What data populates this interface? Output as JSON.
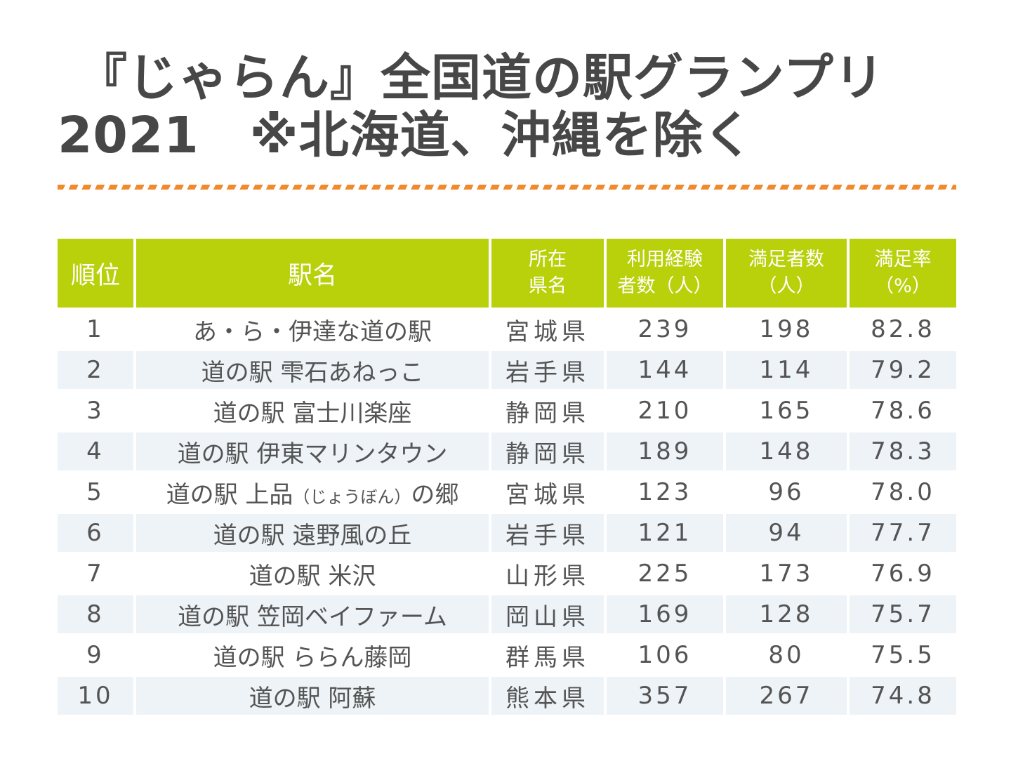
{
  "title": {
    "line1": "『じゃらん』全国道の駅グランプリ",
    "line2": "2021　※北海道、沖縄を除く"
  },
  "accent_colors": {
    "header_bg": "#b9d10a",
    "divider": "#f08a2c",
    "stripe": "#eef3f7"
  },
  "table": {
    "headers": {
      "rank": "順位",
      "name": "駅名",
      "pref_1": "所在",
      "pref_2": "県名",
      "users_1": "利用経験",
      "users_2": "者数（人）",
      "satisfied_1": "満足者数",
      "satisfied_2": "（人）",
      "rate_1": "満足率",
      "rate_2": "（%）"
    },
    "rows": [
      {
        "rank": "1",
        "name": "あ・ら・伊達な道の駅",
        "name_note": "",
        "name_tail": "",
        "pref": "宮城県",
        "users": "239",
        "satisfied": "198",
        "rate": "82.8"
      },
      {
        "rank": "2",
        "name": "道の駅 雫石あねっこ",
        "name_note": "",
        "name_tail": "",
        "pref": "岩手県",
        "users": "144",
        "satisfied": "114",
        "rate": "79.2"
      },
      {
        "rank": "3",
        "name": "道の駅 富士川楽座",
        "name_note": "",
        "name_tail": "",
        "pref": "静岡県",
        "users": "210",
        "satisfied": "165",
        "rate": "78.6"
      },
      {
        "rank": "4",
        "name": "道の駅 伊東マリンタウン",
        "name_note": "",
        "name_tail": "",
        "pref": "静岡県",
        "users": "189",
        "satisfied": "148",
        "rate": "78.3"
      },
      {
        "rank": "5",
        "name": "道の駅 上品",
        "name_note": "（じょうぼん）",
        "name_tail": "の郷",
        "pref": "宮城県",
        "users": "123",
        "satisfied": "96",
        "rate": "78.0"
      },
      {
        "rank": "6",
        "name": "道の駅 遠野風の丘",
        "name_note": "",
        "name_tail": "",
        "pref": "岩手県",
        "users": "121",
        "satisfied": "94",
        "rate": "77.7"
      },
      {
        "rank": "7",
        "name": "道の駅 米沢",
        "name_note": "",
        "name_tail": "",
        "pref": "山形県",
        "users": "225",
        "satisfied": "173",
        "rate": "76.9"
      },
      {
        "rank": "8",
        "name": "道の駅 笠岡ベイファーム",
        "name_note": "",
        "name_tail": "",
        "pref": "岡山県",
        "users": "169",
        "satisfied": "128",
        "rate": "75.7"
      },
      {
        "rank": "9",
        "name": "道の駅 ららん藤岡",
        "name_note": "",
        "name_tail": "",
        "pref": "群馬県",
        "users": "106",
        "satisfied": "80",
        "rate": "75.5"
      },
      {
        "rank": "10",
        "name": "道の駅 阿蘇",
        "name_note": "",
        "name_tail": "",
        "pref": "熊本県",
        "users": "357",
        "satisfied": "267",
        "rate": "74.8"
      }
    ]
  }
}
